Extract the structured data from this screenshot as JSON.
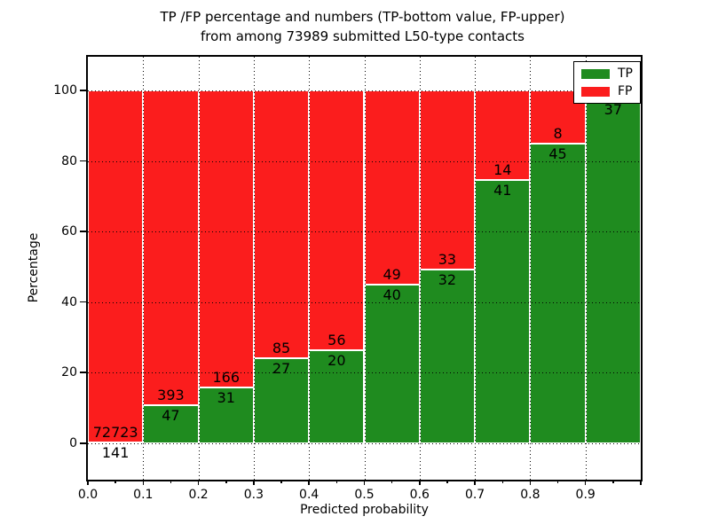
{
  "title": {
    "line1": "TP /FP percentage and numbers (TP-bottom value, FP-upper)",
    "line2": "from among 73989 submitted L50-type contacts"
  },
  "axes": {
    "ylabel": "Percentage",
    "xlabel": "Predicted probability",
    "yticks": [
      "0",
      "20",
      "40",
      "60",
      "80",
      "100"
    ],
    "xticks": [
      "0.0",
      "0.1",
      "0.2",
      "0.3",
      "0.4",
      "0.5",
      "0.6",
      "0.7",
      "0.8",
      "0.9"
    ]
  },
  "legend": {
    "position": "upper right",
    "items": [
      {
        "label": "TP",
        "color": "#1f8b1f"
      },
      {
        "label": "FP",
        "color": "#fb1d1d"
      }
    ]
  },
  "colors": {
    "tp": "#1f8b1f",
    "fp": "#fb1d1d",
    "bar_edge": "#ffffff",
    "grid": "#000000",
    "background": "#ffffff"
  },
  "chart_data": {
    "type": "bar",
    "stacked": true,
    "normalized_to_percent": 100,
    "grid": true,
    "xlim": [
      0.0,
      1.0
    ],
    "ylim": [
      -10.3,
      109.9
    ],
    "bin_width": 0.1,
    "x_bins": [
      "0.0-0.1",
      "0.1-0.2",
      "0.2-0.3",
      "0.3-0.4",
      "0.4-0.5",
      "0.5-0.6",
      "0.6-0.7",
      "0.7-0.8",
      "0.8-0.9",
      "0.9-1.0"
    ],
    "series": [
      {
        "name": "TP",
        "values": [
          141,
          47,
          31,
          27,
          20,
          40,
          32,
          41,
          45,
          37
        ]
      },
      {
        "name": "FP",
        "values": [
          72723,
          393,
          166,
          85,
          56,
          49,
          33,
          14,
          8,
          null
        ]
      }
    ],
    "tp_percent": [
      0.19,
      10.68,
      15.74,
      24.11,
      26.32,
      44.94,
      49.23,
      74.55,
      84.91,
      97.4
    ],
    "note_total_submitted": "73989"
  }
}
